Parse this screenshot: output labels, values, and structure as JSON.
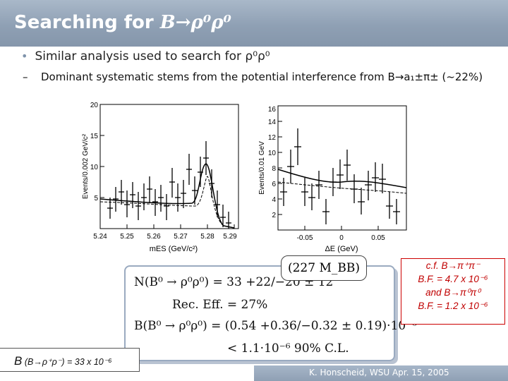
{
  "header": {
    "title_prefix": "Searching for ",
    "title_formula": "B→ρ⁰ρ⁰"
  },
  "bullet": {
    "text": "Similar analysis used to search for ρ⁰ρ⁰"
  },
  "sub_bullet": {
    "dash": "–",
    "text": "Dominant systematic stems from the potential interference from B→a₁±π± (~22%)"
  },
  "plot_left": {
    "ylabel": "Events/0.002 GeV/c²",
    "xlabel": "mES (GeV/c²)",
    "x_ticks": [
      "5.24",
      "5.25",
      "5.26",
      "5.27",
      "5.28",
      "5.29"
    ],
    "y_ticks": [
      "5",
      "10",
      "15",
      "20"
    ]
  },
  "plot_right": {
    "ylabel": "Events/0.01 GeV",
    "xlabel": "ΔE (GeV)",
    "x_ticks": [
      "-0.05",
      "0",
      "0.05"
    ],
    "y_ticks": [
      "2",
      "4",
      "6",
      "8",
      "10",
      "12",
      "14",
      "16"
    ]
  },
  "results": {
    "luminosity": "(227 M_BB)",
    "line1": "N(B⁰ → ρ⁰ρ⁰) = 33 +22/−20 ± 12",
    "line2": "Rec. Eff. = 27%",
    "line3": "B(B⁰ → ρ⁰ρ⁰) = (0.54 +0.36/−0.32 ± 0.19)·10⁻⁶",
    "line4": "<  1.1·10⁻⁶     90% C.L."
  },
  "comparison": {
    "line1": "c.f. B→π⁺π⁻",
    "line2": "B.F. = 4.7 x 10⁻⁶",
    "line3": "and B→π⁰π⁰",
    "line4": "B.F. = 1.2 x 10⁻⁶"
  },
  "bottom_bf": {
    "symbol": "B",
    "text": "(B→ρ⁺ρ⁻) = 33 x 10⁻⁶"
  },
  "footer": {
    "text": "K. Honscheid, WSU  Apr. 15, 2005"
  },
  "colors": {
    "header": "#8fa0b4",
    "accent_red": "#c00000",
    "box_border": "#9aaac0"
  }
}
